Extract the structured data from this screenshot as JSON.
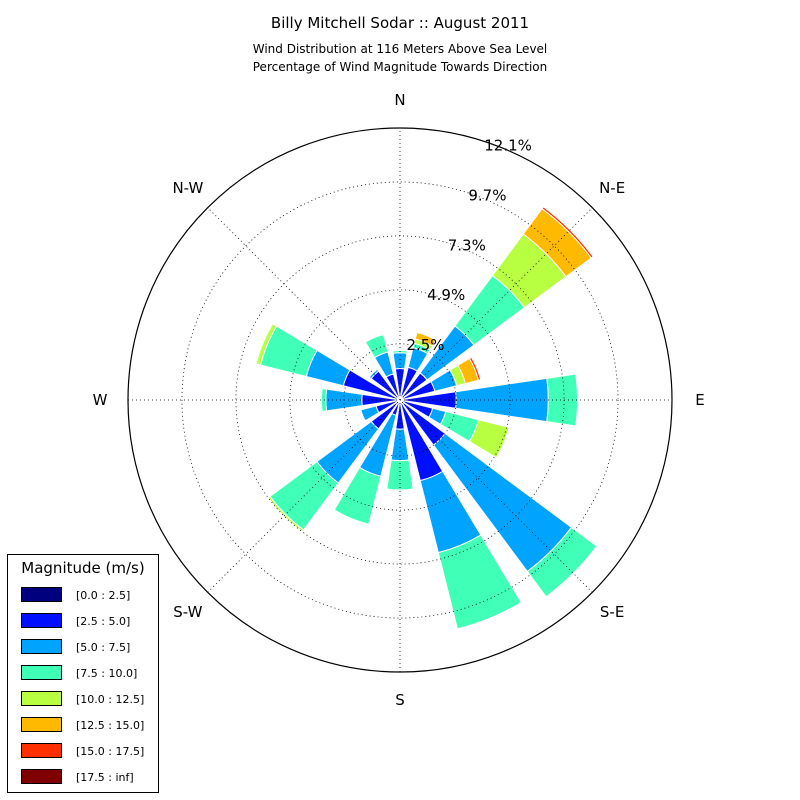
{
  "chart_data": {
    "type": "windrose",
    "title": "Billy Mitchell Sodar :: August 2011",
    "subtitle_lines": [
      "Wind Distribution at 116 Meters Above Sea Level",
      "Percentage of Wind Magnitude Towards Direction"
    ],
    "rmax": 12.1,
    "ring_labels": [
      "2.5%",
      "4.9%",
      "7.3%",
      "9.7%",
      "12.1%"
    ],
    "ring_values": [
      2.5,
      4.9,
      7.3,
      9.7,
      12.1
    ],
    "direction_labels": [
      "E",
      "N-E",
      "N",
      "N-W",
      "W",
      "S-W",
      "S",
      "S-E"
    ],
    "grid": true,
    "legend_title": "Magnitude (m/s)",
    "legend_position": "bottom-left",
    "bins": [
      {
        "label": "[0.0 : 2.5]",
        "color": "#00007f"
      },
      {
        "label": "[2.5 : 5.0]",
        "color": "#0010ff"
      },
      {
        "label": "[5.0 : 7.5]",
        "color": "#00a4ff"
      },
      {
        "label": "[7.5 : 10.0]",
        "color": "#40ffb7"
      },
      {
        "label": "[10.0 : 12.5]",
        "color": "#b7ff40"
      },
      {
        "label": "[12.5 : 15.0]",
        "color": "#ffb900"
      },
      {
        "label": "[15.0 : 17.5]",
        "color": "#ff3000"
      },
      {
        "label": "[17.5 : inf]",
        "color": "#7f0000"
      }
    ],
    "directions": [
      {
        "angle": 0,
        "cumulative": [
          0.1,
          2.5,
          6.6,
          7.9
        ]
      },
      {
        "angle": 22.5,
        "cumulative": [
          0.1,
          1.6,
          2.6,
          2.6,
          3.0,
          3.6,
          3.7
        ]
      },
      {
        "angle": 45,
        "cumulative": [
          0.1,
          1.5,
          4.1,
          6.9,
          9.2,
          10.6,
          10.7
        ]
      },
      {
        "angle": 67.5,
        "cumulative": [
          0.1,
          1.5,
          2.4,
          2.6,
          2.8,
          3.1
        ]
      },
      {
        "angle": 90,
        "cumulative": [
          0.1,
          1.4,
          2.1,
          2.2
        ]
      },
      {
        "angle": 112.5,
        "cumulative": [
          0.1,
          1.2,
          2.2,
          3.0
        ]
      },
      {
        "angle": 135,
        "cumulative": [
          0.1,
          1.6,
          1.7
        ]
      },
      {
        "angle": 157.5,
        "cumulative": [
          0.1,
          2.6,
          4.3,
          6.4,
          6.6
        ]
      },
      {
        "angle": 180,
        "cumulative": [
          0.1,
          1.7,
          3.3,
          3.5
        ]
      },
      {
        "angle": 202.5,
        "cumulative": [
          0.1,
          1.1,
          1.8,
          1.8
        ]
      },
      {
        "angle": 225,
        "cumulative": [
          0.1,
          1.6,
          4.6,
          7.2,
          7.3
        ]
      },
      {
        "angle": 247.5,
        "cumulative": [
          0.1,
          0.7,
          3.5,
          5.7
        ]
      },
      {
        "angle": 270,
        "cumulative": [
          0.1,
          1.3,
          2.7,
          4.0
        ]
      },
      {
        "angle": 292.5,
        "cumulative": [
          0.1,
          3.7,
          7.0,
          10.5
        ]
      },
      {
        "angle": 315,
        "cumulative": [
          0.1,
          2.5,
          9.5,
          10.9
        ]
      },
      {
        "angle": 337.5,
        "cumulative": [
          0.1,
          1.5,
          2.1,
          3.6,
          5.0
        ]
      }
    ]
  }
}
